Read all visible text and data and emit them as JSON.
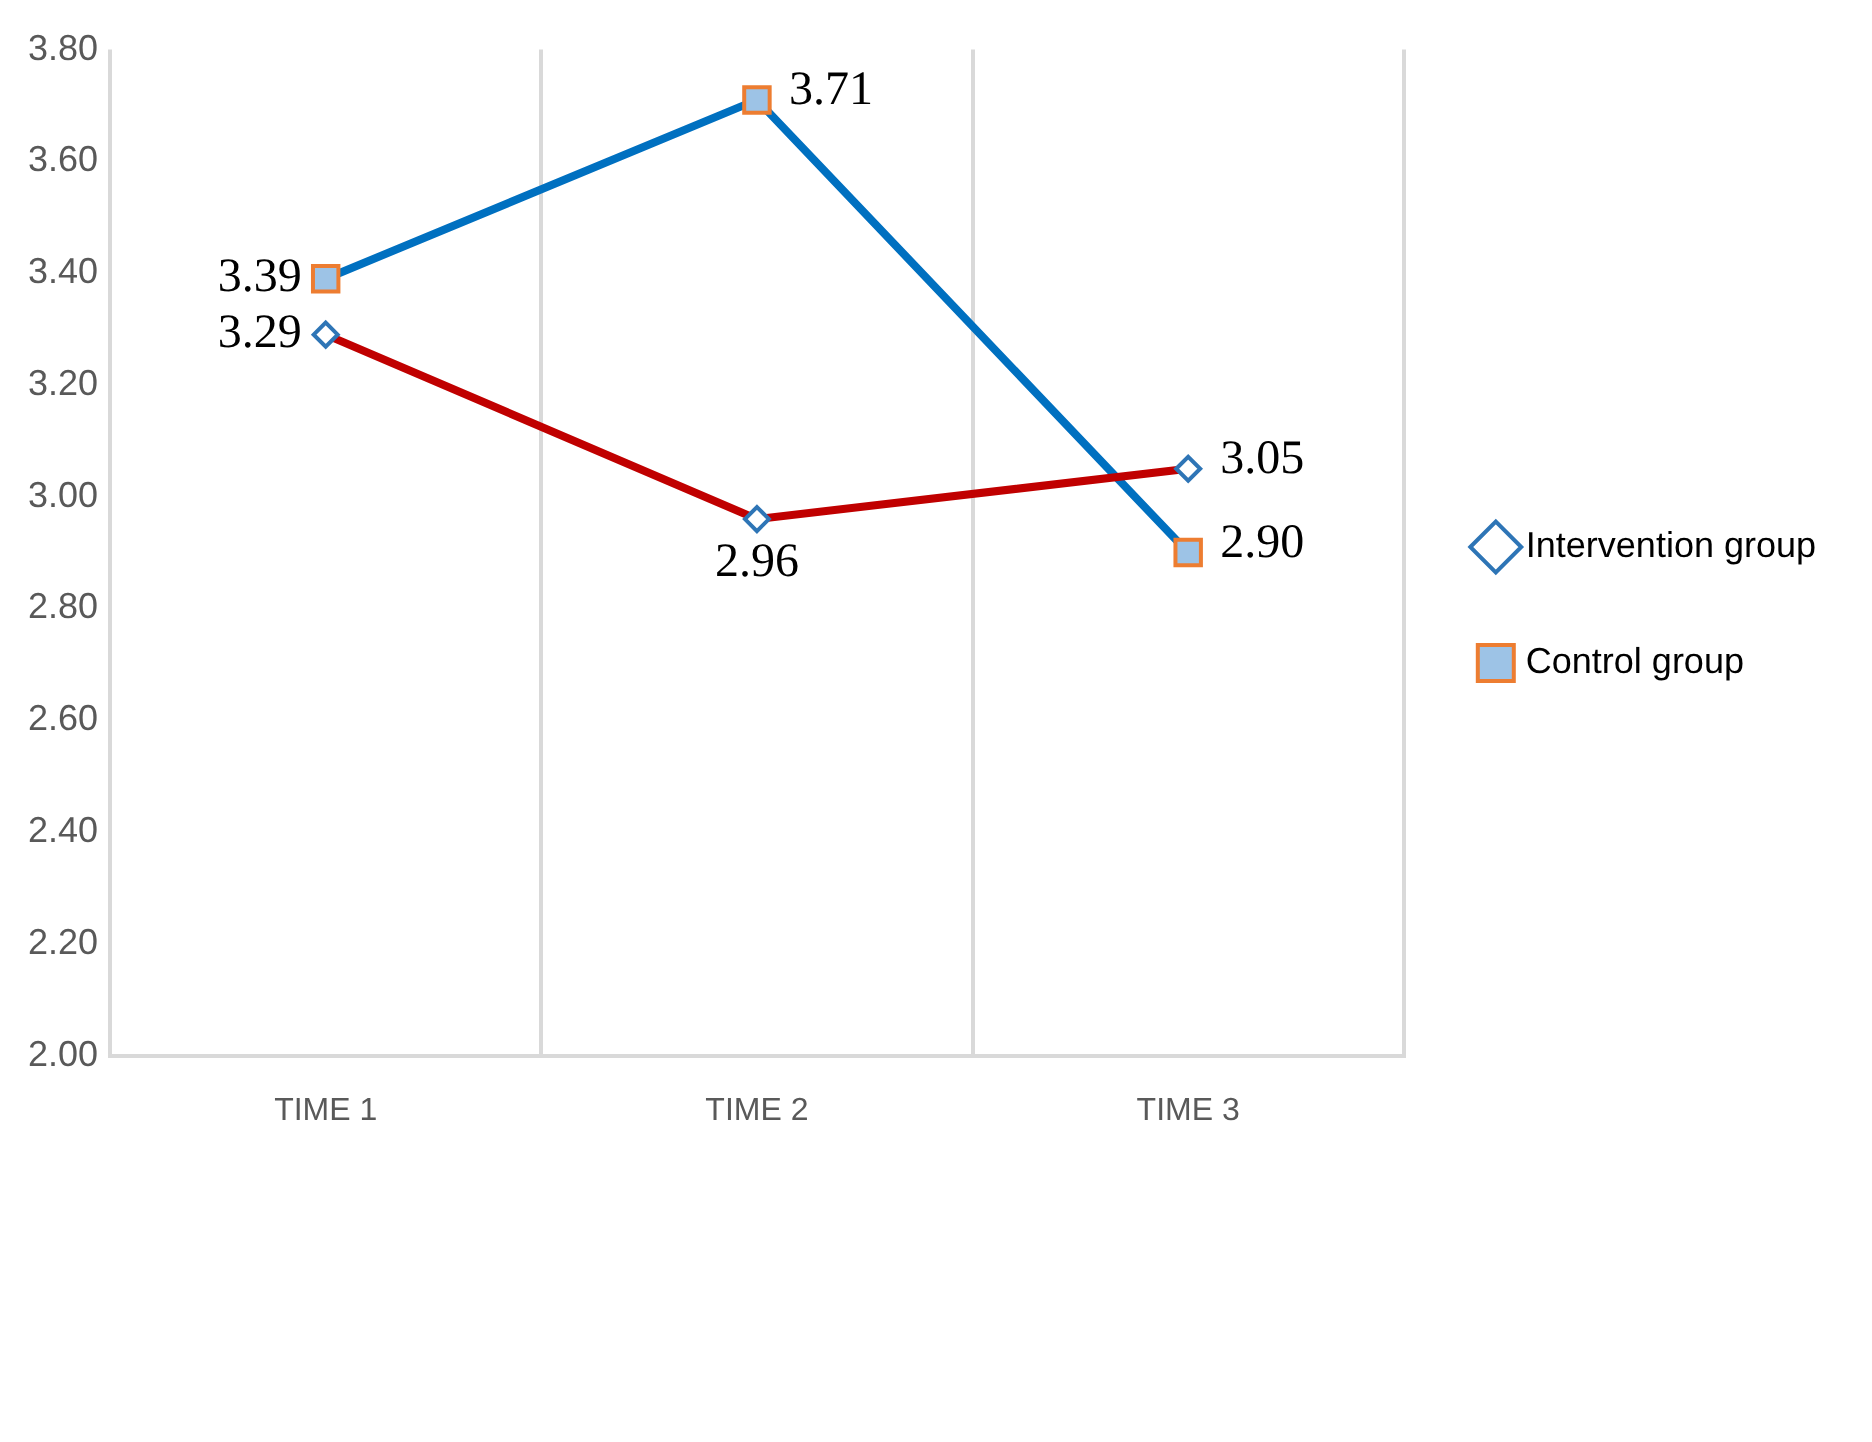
{
  "chart_data": {
    "type": "line",
    "categories": [
      "TIME 1",
      "TIME 2",
      "TIME 3"
    ],
    "series": [
      {
        "name": "Intervention group",
        "color": "#c00000",
        "marker": "diamond",
        "values": [
          3.29,
          2.96,
          3.05
        ],
        "value_labels": [
          "3.29",
          "2.96",
          "3.05"
        ]
      },
      {
        "name": "Control group",
        "color": "#0070c0",
        "marker": "square",
        "values": [
          3.39,
          3.71,
          2.9
        ],
        "value_labels": [
          "3.39",
          "3.71",
          "2.90"
        ]
      }
    ],
    "ylim": [
      2,
      3.8
    ],
    "yticks": [
      {
        "value": 2,
        "label": "2.00"
      },
      {
        "value": 2.2,
        "label": "2.20"
      },
      {
        "value": 2.4,
        "label": "2.40"
      },
      {
        "value": 2.6,
        "label": "2.60"
      },
      {
        "value": 2.8,
        "label": "2.80"
      },
      {
        "value": 3,
        "label": "3.00"
      },
      {
        "value": 3.2,
        "label": "3.20"
      },
      {
        "value": 3.4,
        "label": "3.40"
      },
      {
        "value": 3.6,
        "label": "3.60"
      },
      {
        "value": 3.8,
        "label": "3.80"
      }
    ],
    "grid": "x",
    "legend": "right"
  }
}
